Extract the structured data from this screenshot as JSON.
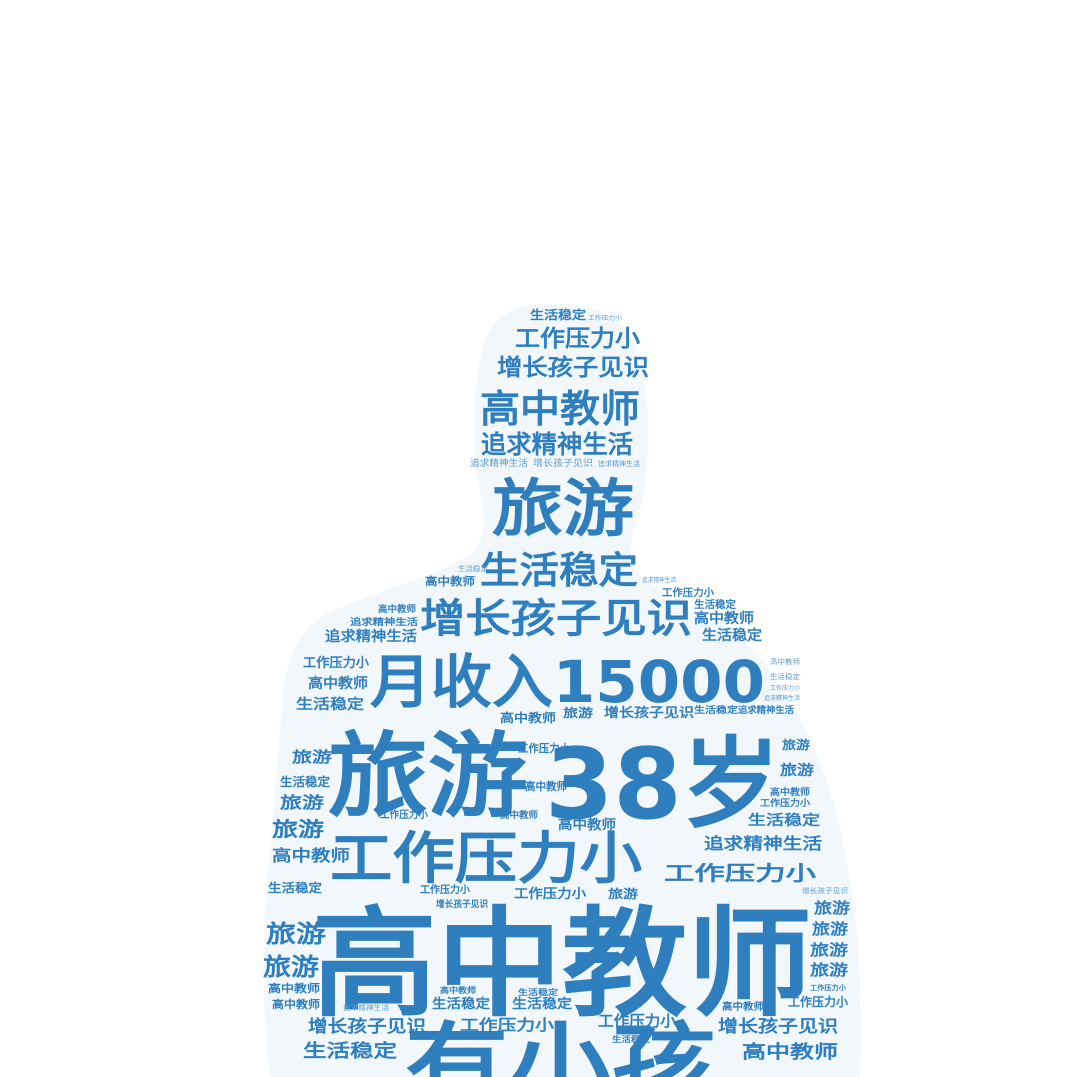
{
  "colors": {
    "word": "#2f7fbf",
    "word_small": "#5b9bd0",
    "silhouette": "#f2f7fc",
    "background": "#ffffff"
  },
  "words": {
    "w_gaozhong_big": "高中教师",
    "w_38": "38岁",
    "w_lvyou_big": "旅游",
    "w_income": "月收入15000",
    "w_youxiaohai": "有小孩",
    "w_gongzuo_big": "工作压力小",
    "w_lvyou_head": "旅游",
    "w_gaozhong_head": "高中教师",
    "w_shenghuo_mid": "生活稳定",
    "w_zengzhang_mid": "增长孩子见识",
    "w_gongzuo_head": "工作压力小",
    "w_zengzhang_head": "增长孩子见识",
    "w_zhuiqiu_head": "追求精神生活",
    "w_shenghuo_top": "生活稳定",
    "w_gongzuo_tiny_top": "工作压力小",
    "w_zhuiqiu_t1": "追求精神生活",
    "w_zengzhang_t1": "增长孩子见识",
    "w_zhuiqiu_t2": "追求精神生活",
    "w_gongzuo_r1": "工作压力小",
    "w_zhuiqiu_r2": "追求精神生活",
    "w_gongzuo_r3": "工作压力小",
    "w_shenghuo_r4": "生活稳定",
    "w_gaozhong_b1": "高中教师",
    "w_gongzuo_b2": "工作压力小",
    "w_zengzhang_b3": "增长孩子见识",
    "w_shenghuo_b4": "生活稳定",
    "w_gaozhong_l1": "高中教师",
    "w_zhuiqiu_l2": "追求精神生活",
    "w_zhuiqiu_l3": "追求精神生活",
    "w_gongzuo_l4": "工作压力小",
    "w_gaozhong_l5": "高中教师",
    "w_shenghuo_l6": "生活稳定",
    "w_lvyou_l7": "旅游",
    "w_lvyou_l8": "旅游",
    "w_lvyou_l9": "旅游",
    "w_gaozhong_l10": "高中教师",
    "w_shenghuo_l11": "生活稳定",
    "w_lvyou_l12": "旅游",
    "w_lvyou_l13": "旅游",
    "w_gaozhong_l14": "高中教师",
    "w_gaozhong_l15": "高中教师",
    "w_zengzhang_l16": "增长孩子见识",
    "w_shenghuo_l17": "生活稳定",
    "w_shenghuo_l18": "生活稳定",
    "w_gaozhong_m1": "高中教师",
    "w_lvyou_m2": "旅游",
    "w_zengzhang_m3": "增长孩子见识",
    "w_gongzuo_m4": "工作压力小",
    "w_shenghuo_m5": "生活稳定",
    "w_gongzuo_m6": "工作压力小",
    "w_lvyou_m7": "旅游",
    "w_gaozhong_m8": "高中教师",
    "w_gaozhong_m9": "高中教师",
    "w_gongzuo_m10": "工作压力小",
    "w_shenghuo_m11": "生活稳定",
    "w_gongzuo_m12": "工作压力小",
    "w_gaozhong_m13": "高中教师",
    "w_shenghuo_m14": "生活稳定",
    "w_shenghuo_m15": "生活稳定",
    "w_gongzuo_m16": "工作压力小",
    "w_gongzuo_m17": "工作压力小",
    "w_gaozhong_m18": "高中教师",
    "w_zengzhang_m19": "增长孩子见识",
    "w_lvyou_r5": "旅游",
    "w_lvyou_r6": "旅游",
    "w_gaozhong_r7": "高中教师",
    "w_gongzuo_r8": "工作压力小",
    "w_shenghuo_r9": "生活稳定",
    "w_zhuiqiu_r10": "追求精神生活",
    "w_gongzuo_r11": "工作压力小",
    "w_lvyou_r12": "旅游",
    "w_lvyou_r13": "旅游",
    "w_lvyou_r14": "旅游",
    "w_lvyou_r15": "旅游",
    "w_gaozhong_r16": "高中教师",
    "w_gongzuo_r17": "工作压力小",
    "w_zengzhang_r18": "增长孩子见识",
    "w_gaozhong_r19": "高中教师",
    "w_shenghuo_r20": "生活稳定",
    "w_shenghuo_r21": "生活稳定",
    "w_gongzuo_r22": "工作压力小",
    "w_gaozhong_r23": "高中教师",
    "w_shenghuo_r24": "生活稳定"
  }
}
